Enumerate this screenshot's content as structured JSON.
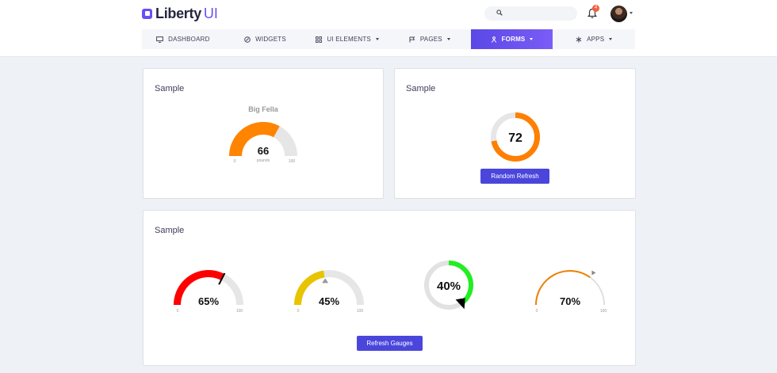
{
  "brand": {
    "name": "Liberty",
    "suffix": "UI"
  },
  "header": {
    "search_placeholder": "",
    "notification_count": "4"
  },
  "nav": {
    "items": [
      {
        "label": "DASHBOARD",
        "icon": "monitor-icon",
        "dropdown": false,
        "active": false
      },
      {
        "label": "WIDGETS",
        "icon": "compass-icon",
        "dropdown": false,
        "active": false
      },
      {
        "label": "UI ELEMENTS",
        "icon": "grid-icon",
        "dropdown": true,
        "active": false
      },
      {
        "label": "PAGES",
        "icon": "flag-icon",
        "dropdown": true,
        "active": false
      },
      {
        "label": "FORMS",
        "icon": "person-icon",
        "dropdown": true,
        "active": true
      },
      {
        "label": "APPS",
        "icon": "asterisk-icon",
        "dropdown": true,
        "active": false
      }
    ]
  },
  "cards": [
    {
      "title": "Sample",
      "gauge": {
        "title": "Big Fella",
        "value": "66",
        "unit": "pounds",
        "min": "0",
        "max": "100",
        "fraction": 0.66,
        "color": "#ff8400"
      }
    },
    {
      "title": "Sample",
      "donut": {
        "value": "72",
        "fraction": 0.72,
        "color": "#ff7f00"
      },
      "button": "Random Refresh"
    },
    {
      "title": "Sample",
      "gauges": [
        {
          "value": "65%",
          "min": "0",
          "max": "100",
          "fraction": 0.65,
          "color": "#ff0000"
        },
        {
          "value": "45%",
          "min": "0",
          "max": "100",
          "fraction": 0.45,
          "color": "#e8c400"
        },
        {
          "value": "40%",
          "fraction": 0.4,
          "color": "#22ee22"
        },
        {
          "value": "70%",
          "min": "0",
          "max": "100",
          "fraction": 0.7,
          "color": "#f08000"
        }
      ],
      "button": "Refresh Gauges"
    }
  ]
}
